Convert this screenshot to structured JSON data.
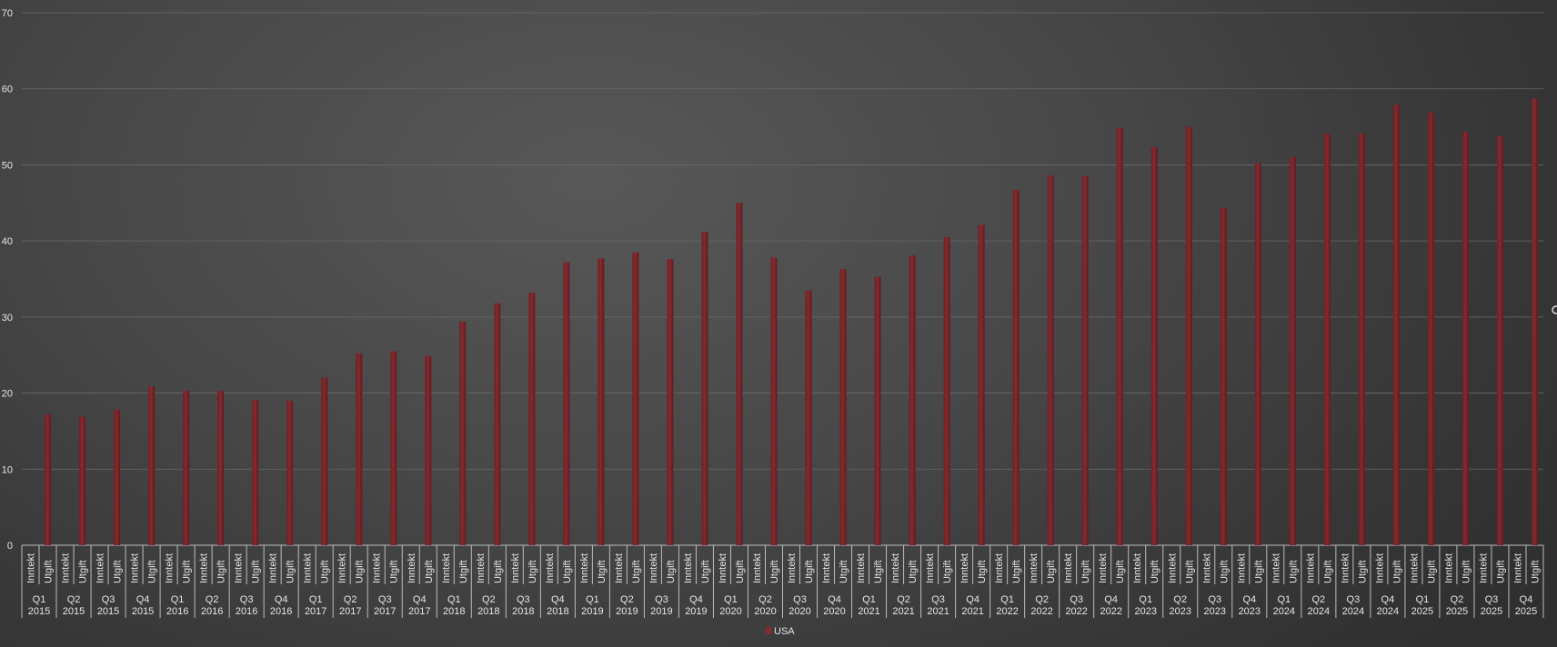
{
  "chart_data": {
    "type": "bar",
    "ylim": [
      0,
      70
    ],
    "yticks": [
      0,
      10,
      20,
      30,
      40,
      50,
      60,
      70
    ],
    "grid": true,
    "legend_position": "bottom",
    "categories": [
      {
        "quarter": "Q1",
        "year": "2015"
      },
      {
        "quarter": "Q2",
        "year": "2015"
      },
      {
        "quarter": "Q3",
        "year": "2015"
      },
      {
        "quarter": "Q4",
        "year": "2015"
      },
      {
        "quarter": "Q1",
        "year": "2016"
      },
      {
        "quarter": "Q2",
        "year": "2016"
      },
      {
        "quarter": "Q3",
        "year": "2016"
      },
      {
        "quarter": "Q4",
        "year": "2016"
      },
      {
        "quarter": "Q1",
        "year": "2017"
      },
      {
        "quarter": "Q2",
        "year": "2017"
      },
      {
        "quarter": "Q3",
        "year": "2017"
      },
      {
        "quarter": "Q4",
        "year": "2017"
      },
      {
        "quarter": "Q1",
        "year": "2018"
      },
      {
        "quarter": "Q2",
        "year": "2018"
      },
      {
        "quarter": "Q3",
        "year": "2018"
      },
      {
        "quarter": "Q4",
        "year": "2018"
      },
      {
        "quarter": "Q1",
        "year": "2019"
      },
      {
        "quarter": "Q2",
        "year": "2019"
      },
      {
        "quarter": "Q3",
        "year": "2019"
      },
      {
        "quarter": "Q4",
        "year": "2019"
      },
      {
        "quarter": "Q1",
        "year": "2020"
      },
      {
        "quarter": "Q2",
        "year": "2020"
      },
      {
        "quarter": "Q3",
        "year": "2020"
      },
      {
        "quarter": "Q4",
        "year": "2020"
      },
      {
        "quarter": "Q1",
        "year": "2021"
      },
      {
        "quarter": "Q2",
        "year": "2021"
      },
      {
        "quarter": "Q3",
        "year": "2021"
      },
      {
        "quarter": "Q4",
        "year": "2021"
      },
      {
        "quarter": "Q1",
        "year": "2022"
      },
      {
        "quarter": "Q2",
        "year": "2022"
      },
      {
        "quarter": "Q3",
        "year": "2022"
      },
      {
        "quarter": "Q4",
        "year": "2022"
      },
      {
        "quarter": "Q1",
        "year": "2023"
      },
      {
        "quarter": "Q2",
        "year": "2023"
      },
      {
        "quarter": "Q3",
        "year": "2023"
      },
      {
        "quarter": "Q4",
        "year": "2023"
      },
      {
        "quarter": "Q1",
        "year": "2024"
      },
      {
        "quarter": "Q2",
        "year": "2024"
      },
      {
        "quarter": "Q3",
        "year": "2024"
      },
      {
        "quarter": "Q4",
        "year": "2024"
      },
      {
        "quarter": "Q1",
        "year": "2025"
      },
      {
        "quarter": "Q2",
        "year": "2025"
      },
      {
        "quarter": "Q3",
        "year": "2025"
      },
      {
        "quarter": "Q4",
        "year": "2025"
      }
    ],
    "subcategories": [
      "Inntekt",
      "Utgift"
    ],
    "series": [
      {
        "name": "USA",
        "color": "#862a2e",
        "subcategory": "Utgift",
        "values": [
          17.2,
          16.9,
          17.8,
          20.9,
          20.3,
          20.3,
          19.1,
          19.0,
          22.0,
          25.2,
          25.5,
          24.9,
          29.4,
          31.8,
          33.2,
          37.2,
          37.7,
          38.5,
          37.6,
          41.2,
          45.0,
          37.8,
          33.5,
          36.3,
          35.3,
          38.1,
          40.5,
          42.1,
          46.7,
          48.6,
          48.5,
          54.9,
          52.3,
          55.0,
          44.3,
          50.2,
          51.0,
          54.1,
          54.1,
          57.9,
          56.9,
          54.3,
          53.8,
          58.7
        ]
      }
    ]
  }
}
